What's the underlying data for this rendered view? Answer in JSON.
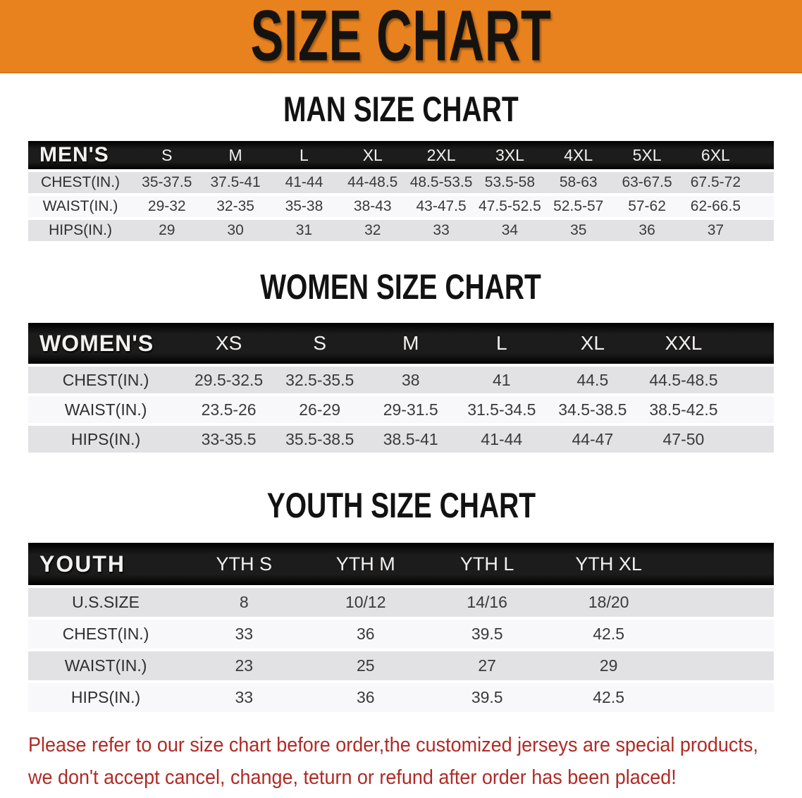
{
  "banner": {
    "title": "SIZE CHART"
  },
  "sections": [
    {
      "key": "men",
      "heading": "MAN SIZE CHART",
      "table": {
        "corner_label": "MEN'S",
        "sizes": [
          "S",
          "M",
          "L",
          "XL",
          "2XL",
          "3XL",
          "4XL",
          "5XL",
          "6XL"
        ],
        "rows": [
          {
            "label": "CHEST(IN.)",
            "values": [
              "35-37.5",
              "37.5-41",
              "41-44",
              "44-48.5",
              "48.5-53.5",
              "53.5-58",
              "58-63",
              "63-67.5",
              "67.5-72"
            ]
          },
          {
            "label": "WAIST(IN.)",
            "values": [
              "29-32",
              "32-35",
              "35-38",
              "38-43",
              "43-47.5",
              "47.5-52.5",
              "52.5-57",
              "57-62",
              "62-66.5"
            ]
          },
          {
            "label": "HIPS(IN.)",
            "values": [
              "29",
              "30",
              "31",
              "32",
              "33",
              "34",
              "35",
              "36",
              "37"
            ]
          }
        ]
      }
    },
    {
      "key": "women",
      "heading": "WOMEN SIZE CHART",
      "table": {
        "corner_label": "WOMEN'S",
        "sizes": [
          "XS",
          "S",
          "M",
          "L",
          "XL",
          "XXL"
        ],
        "rows": [
          {
            "label": "CHEST(IN.)",
            "values": [
              "29.5-32.5",
              "32.5-35.5",
              "38",
              "41",
              "44.5",
              "44.5-48.5"
            ]
          },
          {
            "label": "WAIST(IN.)",
            "values": [
              "23.5-26",
              "26-29",
              "29-31.5",
              "31.5-34.5",
              "34.5-38.5",
              "38.5-42.5"
            ]
          },
          {
            "label": "HIPS(IN.)",
            "values": [
              "33-35.5",
              "35.5-38.5",
              "38.5-41",
              "41-44",
              "44-47",
              "47-50"
            ]
          }
        ]
      }
    },
    {
      "key": "youth",
      "heading": "YOUTH SIZE CHART",
      "table": {
        "corner_label": "YOUTH",
        "sizes": [
          "YTH S",
          "YTH M",
          "YTH L",
          "YTH XL"
        ],
        "rows": [
          {
            "label": "U.S.SIZE",
            "values": [
              "8",
              "10/12",
              "14/16",
              "18/20"
            ]
          },
          {
            "label": "CHEST(IN.)",
            "values": [
              "33",
              "36",
              "39.5",
              "42.5"
            ]
          },
          {
            "label": "WAIST(IN.)",
            "values": [
              "23",
              "25",
              "27",
              "29"
            ]
          },
          {
            "label": "HIPS(IN.)",
            "values": [
              "33",
              "36",
              "39.5",
              "42.5"
            ]
          }
        ]
      }
    }
  ],
  "footer": {
    "line1": "Please refer to our size chart before order,the customized jerseys are special products,",
    "line2": "we don't accept cancel, change, teturn or refund after order has been placed!"
  },
  "colors": {
    "banner_orange": "#E8821E",
    "header_bar": "#1D1C1C",
    "row_gray": "#E2E2E4",
    "row_white": "#F8F8FA",
    "data_text": "#3A3A3C",
    "disclaimer_red": "#B02A25"
  }
}
